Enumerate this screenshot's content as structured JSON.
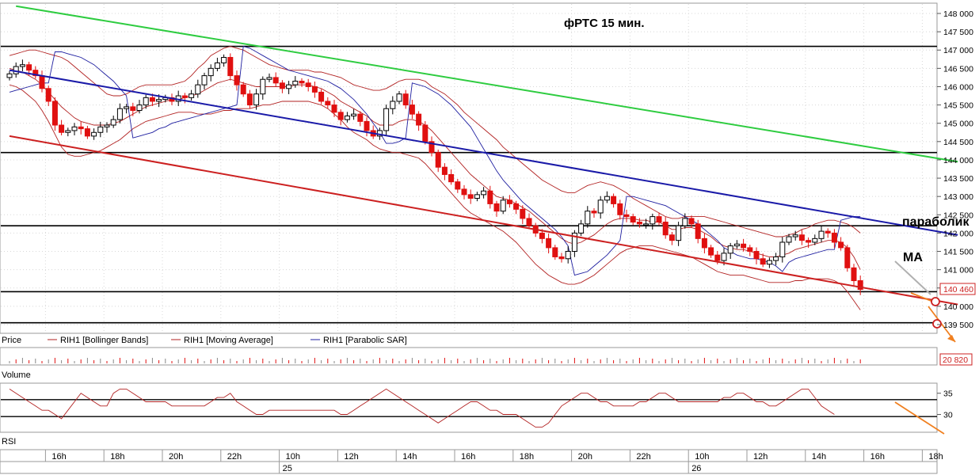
{
  "chart_data": {
    "type": "candlestick",
    "title": "фРТС   15 мин.",
    "price_axis": {
      "min": 139500,
      "max": 148000,
      "ticks": [
        "148 000",
        "147 500",
        "147 000",
        "146 500",
        "146 000",
        "145 500",
        "145 000",
        "144 500",
        "144 000",
        "143 500",
        "143 000",
        "142 500",
        "142 000",
        "141 500",
        "141 000",
        "140 500",
        "140 000",
        "139 500"
      ],
      "tick_values": [
        148000,
        147500,
        147000,
        146500,
        146000,
        145500,
        145000,
        144500,
        144000,
        143500,
        143000,
        142500,
        142000,
        141500,
        141000,
        140500,
        140000,
        139500
      ],
      "last_price_label": "140 460",
      "last_price": 140460
    },
    "legend": [
      {
        "label": "Price",
        "color": "#000000"
      },
      {
        "label": "RIH1 [Bollinger Bands]",
        "color": "#b22222"
      },
      {
        "label": "RIH1 [Moving Average]",
        "color": "#b22222"
      },
      {
        "label": "RIH1 [Parabolic SAR]",
        "color": "#1f1fa0"
      }
    ],
    "annotations": [
      {
        "text": "параболик",
        "price": 142250
      },
      {
        "text": "MA",
        "price": 141450
      }
    ],
    "horizontal_levels": [
      147100,
      144200,
      142200,
      140400,
      139550
    ],
    "trend_lines": [
      {
        "color": "#2ecc40",
        "from": {
          "bar": 1,
          "price": 148200
        },
        "to": {
          "bar": 146,
          "price": 143950
        }
      },
      {
        "color": "#1a1aa8",
        "from": {
          "bar": 0,
          "price": 146450
        },
        "to": {
          "bar": 146,
          "price": 141950
        }
      },
      {
        "color": "#cc2020",
        "from": {
          "bar": 0,
          "price": 144650
        },
        "to": {
          "bar": 146,
          "price": 140050
        }
      }
    ],
    "candles_close": [
      146350,
      146550,
      146600,
      146450,
      146300,
      145950,
      145600,
      144950,
      144750,
      144800,
      144900,
      144850,
      144650,
      144750,
      144900,
      144950,
      145100,
      145400,
      145450,
      145350,
      145500,
      145700,
      145600,
      145650,
      145700,
      145600,
      145750,
      145700,
      145800,
      146050,
      146300,
      146500,
      146650,
      146800,
      146300,
      146050,
      145800,
      145500,
      145800,
      146200,
      146250,
      146100,
      145950,
      146050,
      146150,
      146100,
      146000,
      145850,
      145600,
      145500,
      145300,
      145100,
      145200,
      145250,
      145050,
      144800,
      144650,
      144800,
      145400,
      145600,
      145800,
      145500,
      145250,
      144950,
      144500,
      144200,
      143800,
      143600,
      143400,
      143200,
      143050,
      142950,
      143050,
      143150,
      142800,
      142600,
      142900,
      142800,
      142650,
      142400,
      142200,
      142000,
      141850,
      141600,
      141350,
      141300,
      141500,
      142000,
      142250,
      142600,
      142550,
      142900,
      143000,
      142800,
      142500,
      142450,
      142300,
      142250,
      142250,
      142450,
      142300,
      141950,
      141800,
      142200,
      142400,
      142250,
      141850,
      141600,
      141400,
      141250,
      141450,
      141650,
      141700,
      141600,
      141500,
      141300,
      141150,
      141250,
      141350,
      141750,
      141900,
      141950,
      141800,
      141750,
      141850,
      142050,
      142000,
      141750,
      141600,
      141050,
      140700,
      140460
    ],
    "moving_average": [
      146500,
      146450,
      146400,
      146300,
      146200,
      146050,
      145850,
      145650,
      145450,
      145300,
      145150,
      145050,
      145000,
      144950,
      144950,
      144950,
      145000,
      145050,
      145150,
      145250,
      145350,
      145450,
      145500,
      145550,
      145600,
      145650,
      145650,
      145700,
      145750,
      145800,
      145900,
      146000,
      146100,
      146150,
      146200,
      146150,
      146100,
      146050,
      146000,
      146000,
      146000,
      146000,
      146000,
      146000,
      146050,
      146050,
      146050,
      146000,
      145950,
      145850,
      145750,
      145600,
      145500,
      145400,
      145300,
      145200,
      145050,
      144950,
      144950,
      144950,
      145050,
      145100,
      145100,
      145050,
      144950,
      144800,
      144600,
      144400,
      144200,
      144000,
      143800,
      143600,
      143450,
      143300,
      143150,
      143000,
      142950,
      142900,
      142800,
      142700,
      142600,
      142450,
      142300,
      142150,
      142000,
      141850,
      141750,
      141700,
      141750,
      141850,
      141950,
      142100,
      142250,
      142350,
      142400,
      142400,
      142400,
      142350,
      142350,
      142300,
      142300,
      142200,
      142100,
      142100,
      142150,
      142150,
      142100,
      142000,
      141900,
      141750,
      141650,
      141600,
      141550,
      141550,
      141500,
      141450,
      141400,
      141350,
      141350,
      141400,
      141450,
      141550,
      141600,
      141650,
      141700,
      141750,
      141800,
      141800,
      141750,
      141600,
      141350,
      141000
    ],
    "bollinger_upper": [
      146850,
      146900,
      146950,
      147000,
      147000,
      146950,
      146900,
      146850,
      146800,
      146700,
      146550,
      146400,
      146250,
      146100,
      145950,
      145800,
      145750,
      145750,
      145800,
      145900,
      146000,
      146050,
      146050,
      146050,
      146050,
      146050,
      146100,
      146150,
      146300,
      146500,
      146650,
      146850,
      146950,
      147050,
      147100,
      147050,
      147000,
      146900,
      146800,
      146700,
      146600,
      146550,
      146500,
      146450,
      146450,
      146450,
      146450,
      146400,
      146400,
      146350,
      146300,
      146250,
      146150,
      146050,
      146000,
      145950,
      145900,
      145900,
      145950,
      146050,
      146150,
      146200,
      146200,
      146200,
      146150,
      146000,
      145900,
      145800,
      145650,
      145500,
      145300,
      145150,
      145000,
      144850,
      144700,
      144550,
      144350,
      144200,
      144050,
      143900,
      143750,
      143600,
      143450,
      143350,
      143250,
      143150,
      143100,
      143100,
      143200,
      143300,
      143350,
      143400,
      143350,
      143300,
      143200,
      143100,
      142950,
      142850,
      142750,
      142650,
      142550,
      142450,
      142400,
      142400,
      142450,
      142450,
      142450,
      142450,
      142400,
      142350,
      142300,
      142250,
      142200,
      142150,
      142100,
      142050,
      142000,
      141950,
      141900,
      141900,
      141950,
      142000,
      142100,
      142150,
      142250,
      142300,
      142350,
      142350,
      142300,
      142250,
      142150,
      142000
    ],
    "bollinger_lower": [
      146050,
      146000,
      145900,
      145750,
      145600,
      145350,
      145050,
      144700,
      144350,
      144150,
      144100,
      144100,
      144150,
      144200,
      144250,
      144350,
      144450,
      144550,
      144700,
      144850,
      144950,
      145050,
      145100,
      145150,
      145200,
      145250,
      145300,
      145300,
      145300,
      145250,
      145250,
      145250,
      145300,
      145350,
      145350,
      145400,
      145400,
      145400,
      145450,
      145500,
      145500,
      145550,
      145600,
      145600,
      145600,
      145600,
      145600,
      145550,
      145500,
      145400,
      145250,
      145100,
      144900,
      144750,
      144650,
      144550,
      144400,
      144300,
      144250,
      144200,
      144200,
      144150,
      144100,
      144050,
      143900,
      143700,
      143500,
      143300,
      143100,
      142900,
      142700,
      142550,
      142450,
      142350,
      142250,
      142150,
      142050,
      141900,
      141750,
      141550,
      141350,
      141150,
      141000,
      140850,
      140750,
      140650,
      140600,
      140600,
      140650,
      140750,
      140850,
      141000,
      141150,
      141300,
      141450,
      141550,
      141600,
      141650,
      141650,
      141650,
      141600,
      141550,
      141500,
      141450,
      141400,
      141350,
      141250,
      141150,
      141050,
      140950,
      140900,
      140850,
      140850,
      140850,
      140800,
      140750,
      140700,
      140650,
      140650,
      140650,
      140650,
      140700,
      140700,
      140750,
      140750,
      140750,
      140750,
      140700,
      140600,
      140400,
      140150,
      139900
    ],
    "parabolic_sar": [
      145850,
      145900,
      145950,
      146000,
      146050,
      146100,
      146100,
      146950,
      146950,
      146900,
      146850,
      146800,
      146700,
      146600,
      146450,
      146300,
      146150,
      145950,
      145750,
      144600,
      144650,
      144700,
      144750,
      144850,
      144900,
      145000,
      145050,
      145100,
      145150,
      145200,
      145250,
      145300,
      145350,
      145400,
      145450,
      145500,
      147100,
      147050,
      146950,
      146850,
      146750,
      146650,
      146550,
      146450,
      146400,
      146350,
      146300,
      146250,
      146200,
      146150,
      146050,
      145950,
      145800,
      145650,
      145450,
      145250,
      145000,
      144750,
      144450,
      144450,
      144500,
      144600,
      146100,
      146050,
      146000,
      145900,
      145800,
      145650,
      145500,
      145300,
      145100,
      144900,
      144600,
      144300,
      144000,
      143700,
      143450,
      143250,
      143050,
      142850,
      142700,
      142550,
      142400,
      142250,
      142100,
      141900,
      141650,
      140850,
      140900,
      140950,
      141100,
      141250,
      141400,
      141600,
      141800,
      143000,
      143000,
      142950,
      142900,
      142850,
      142800,
      142750,
      142650,
      142550,
      142450,
      142350,
      142250,
      142100,
      141950,
      141800,
      141600,
      141500,
      141400,
      141350,
      141300,
      141300,
      141250,
      141200,
      141100,
      140950,
      141200,
      141300,
      141350,
      141400,
      141450,
      141500,
      141550,
      141550,
      142350,
      142400,
      142450,
      142450
    ],
    "time_axis": {
      "labels": [
        "16h",
        "18h",
        "20h",
        "22h",
        "10h",
        "12h",
        "14h",
        "16h",
        "18h",
        "20h",
        "22h",
        "10h",
        "12h",
        "14h",
        "16h",
        "18h"
      ],
      "label_bars": [
        7,
        16,
        25,
        34,
        43,
        52,
        61,
        70,
        79,
        88,
        97,
        106,
        115,
        124,
        133,
        142
      ],
      "date_labels": [
        {
          "text": "25",
          "bar": 43
        },
        {
          "text": "26",
          "bar": 106
        }
      ]
    },
    "volume_panel": {
      "label": "Volume",
      "value_label": "20 820"
    },
    "rsi_panel": {
      "label": "RSI",
      "ticks": [
        "35",
        "30"
      ],
      "tick_values": [
        35,
        30
      ],
      "levels": [
        33.5,
        29.5
      ],
      "min": 26,
      "max": 37,
      "values": [
        36,
        35,
        34,
        33,
        32,
        31,
        31,
        30,
        29,
        31,
        33,
        35,
        34,
        33,
        32,
        32,
        35,
        36,
        36,
        35,
        34,
        33,
        33,
        33,
        33,
        32,
        32,
        32,
        32,
        32,
        32,
        33,
        34,
        34,
        35,
        33,
        32,
        31,
        30,
        30,
        31,
        31,
        31,
        31,
        31,
        31,
        31,
        31,
        31,
        31,
        31,
        30,
        30,
        31,
        32,
        33,
        34,
        35,
        36,
        35,
        34,
        33,
        32,
        31,
        30,
        29,
        28,
        29,
        30,
        31,
        32,
        33,
        33,
        32,
        31,
        31,
        30,
        30,
        30,
        29,
        28,
        27,
        27,
        28,
        30,
        32,
        33,
        34,
        35,
        35,
        34,
        33,
        33,
        32,
        32,
        32,
        32,
        33,
        33,
        34,
        35,
        35,
        34,
        33,
        33,
        33,
        33,
        33,
        33,
        33,
        34,
        34,
        35,
        35,
        34,
        33,
        33,
        32,
        32,
        33,
        34,
        35,
        36,
        36,
        34,
        32,
        31,
        30
      ]
    }
  }
}
